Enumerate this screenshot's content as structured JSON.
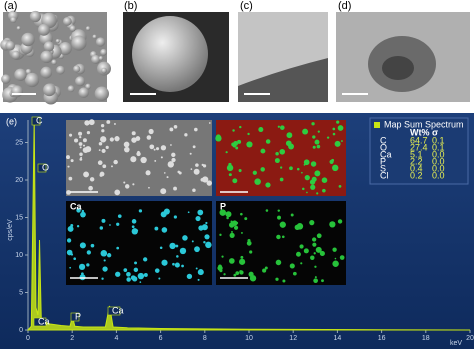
{
  "panels": [
    "(a)",
    "(b)",
    "(c)",
    "(d)"
  ],
  "chart_data": {
    "type": "area",
    "panel": "(e)",
    "y_label": "cps/eV",
    "x_label": "keV",
    "x": [
      0,
      0.15,
      0.28,
      0.36,
      0.45,
      0.52,
      0.6,
      0.8,
      1.0,
      1.5,
      1.9,
      2.01,
      2.12,
      2.5,
      3.5,
      3.69,
      3.85,
      4.5,
      6,
      10,
      15,
      20
    ],
    "series": [
      {
        "name": "Spectrum",
        "color": "#c8e614",
        "values": [
          0,
          0.5,
          28,
          3,
          2,
          12,
          1.5,
          1,
          0.8,
          0.6,
          0.5,
          1.8,
          0.5,
          0.4,
          0.4,
          3.2,
          0.4,
          0.3,
          0.2,
          0.1,
          0.05,
          0
        ]
      }
    ],
    "peak_labels": [
      "C",
      "O",
      "Ca",
      "P",
      "Ca"
    ],
    "xlim": [
      0,
      20
    ],
    "xticks": [
      0,
      2,
      4,
      6,
      8,
      10,
      12,
      14,
      16,
      18,
      20
    ],
    "ylim": [
      0,
      28
    ],
    "yticks": [
      0,
      5,
      10,
      15,
      20,
      25
    ]
  },
  "maps": [
    "Ca",
    "P"
  ],
  "legend": {
    "title": "Map Sum Spectrum",
    "columns": [
      "Wt%",
      "σ"
    ],
    "rows": [
      [
        "C",
        "64.7",
        "0.1"
      ],
      [
        "O",
        "27.4",
        "0.1"
      ],
      [
        "Ca",
        "5.1",
        "0.0"
      ],
      [
        "P",
        "2.2",
        "0.0"
      ],
      [
        "S",
        "0.4",
        "0.0"
      ],
      [
        "Cl",
        "0.2",
        "0.0"
      ]
    ]
  }
}
